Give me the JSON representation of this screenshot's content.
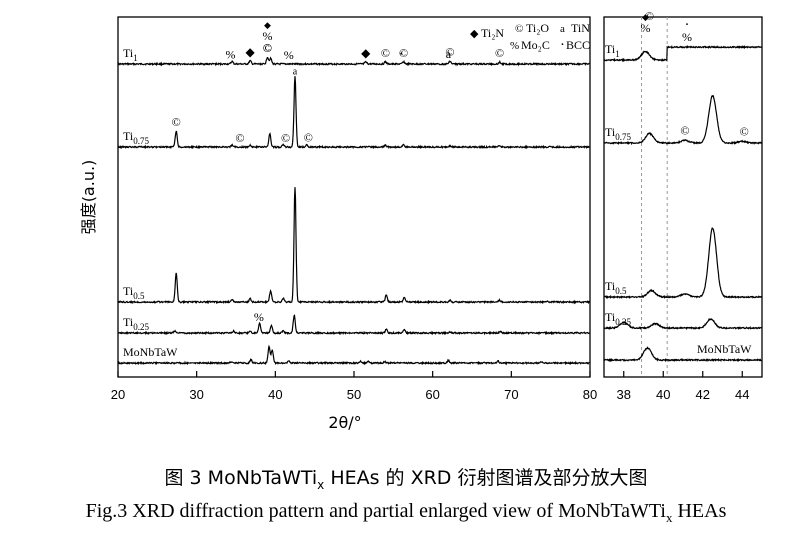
{
  "chart_data": [
    {
      "type": "line",
      "panel": "full pattern",
      "xlabel": "2θ/°",
      "ylabel": "强度(a.u.)",
      "xlim": [
        20,
        80
      ],
      "x_ticks": [
        20,
        30,
        40,
        50,
        60,
        70,
        80
      ],
      "grid": false,
      "legend": {
        "placement": "top-right",
        "entries": [
          {
            "symbol": "◆",
            "label": "Ti₂N"
          },
          {
            "symbol": "©",
            "label": "Ti₂O"
          },
          {
            "symbol": "a",
            "label": "TiN"
          },
          {
            "symbol": "%",
            "label": "Mo₂C"
          },
          {
            "symbol": "·",
            "label": "BCC"
          }
        ]
      },
      "series": [
        {
          "name": "Ti1",
          "baseline": 8,
          "peaks": [
            [
              34.5,
              0.8
            ],
            [
              36.8,
              1.0
            ],
            [
              39.0,
              2.2
            ],
            [
              39.4,
              1.8
            ],
            [
              51.5,
              0.6
            ],
            [
              54.0,
              0.7
            ],
            [
              56.3,
              0.7
            ],
            [
              62.2,
              0.9
            ],
            [
              68.5,
              0.6
            ]
          ]
        },
        {
          "name": "Ti0.75",
          "baseline": 8,
          "peaks": [
            [
              27.4,
              5.0
            ],
            [
              34.5,
              0.6
            ],
            [
              36.8,
              0.5
            ],
            [
              39.3,
              4.2
            ],
            [
              41.0,
              0.8
            ],
            [
              42.5,
              22.0
            ],
            [
              44.0,
              0.7
            ],
            [
              54.0,
              0.6
            ],
            [
              56.3,
              0.6
            ],
            [
              62.2,
              0.4
            ],
            [
              68.5,
              0.6
            ]
          ]
        },
        {
          "name": "Ti0.5",
          "baseline": 8,
          "peaks": [
            [
              27.4,
              9.0
            ],
            [
              34.5,
              0.8
            ],
            [
              36.8,
              1.0
            ],
            [
              39.4,
              3.5
            ],
            [
              41.0,
              1.1
            ],
            [
              42.5,
              36.0
            ],
            [
              54.1,
              2.3
            ],
            [
              56.4,
              1.4
            ],
            [
              62.2,
              0.5
            ],
            [
              68.5,
              0.6
            ],
            [
              74.5,
              0.3
            ]
          ]
        },
        {
          "name": "Ti0.25",
          "baseline": 8,
          "peaks": [
            [
              27.2,
              0.6
            ],
            [
              34.7,
              0.6
            ],
            [
              36.8,
              0.7
            ],
            [
              38.0,
              3.0
            ],
            [
              39.5,
              2.3
            ],
            [
              41.0,
              0.6
            ],
            [
              42.4,
              5.6
            ],
            [
              54.1,
              1.3
            ],
            [
              56.4,
              1.0
            ],
            [
              62.2,
              0.4
            ],
            [
              68.6,
              0.6
            ]
          ]
        },
        {
          "name": "MoNbTaW",
          "baseline": 8,
          "peaks": [
            [
              34.4,
              0.4
            ],
            [
              36.9,
              1.0
            ],
            [
              39.2,
              5.2
            ],
            [
              39.6,
              4.0
            ],
            [
              41.7,
              0.6
            ],
            [
              50.8,
              0.5
            ],
            [
              51.8,
              0.4
            ],
            [
              53.9,
              0.5
            ],
            [
              62.0,
              0.8
            ],
            [
              68.3,
              0.6
            ],
            [
              73.8,
              0.4
            ]
          ]
        }
      ],
      "series_labels": [
        {
          "base": "Ti",
          "sub": "1"
        },
        {
          "base": "Ti",
          "sub": "0.75"
        },
        {
          "base": "Ti",
          "sub": "0.5"
        },
        {
          "base": "Ti",
          "sub": "0.25"
        },
        {
          "base": "MoNbTaW",
          "sub": ""
        }
      ],
      "peak_marks": [
        {
          "series": "Ti1",
          "items": [
            [
              "%",
              34.3
            ],
            [
              "◆",
              36.8
            ],
            [
              "©",
              39.0
            ],
            [
              "%",
              41.7
            ],
            [
              "◆",
              51.5
            ],
            [
              "©",
              54.0
            ],
            [
              "·",
              56.0
            ],
            [
              "©",
              56.3
            ],
            [
              "a",
              62.0
            ],
            [
              "©",
              62.2
            ],
            [
              "©",
              68.5
            ]
          ]
        },
        {
          "series": "Ti0.75",
          "items": [
            [
              "©",
              27.4
            ],
            [
              "©",
              35.5
            ],
            [
              "©",
              41.3
            ],
            [
              "©",
              44.2
            ]
          ]
        },
        {
          "series": "Ti0.25",
          "items": [
            [
              "%",
              37.9
            ]
          ]
        }
      ],
      "stacked_mark": {
        "series": "Ti1",
        "x": 39.0,
        "symbols": [
          "◆",
          "%",
          "©"
        ]
      },
      "top_mark": {
        "series": "Ti0.75",
        "x": 42.5,
        "symbol": "a"
      }
    },
    {
      "type": "line",
      "panel": "partial enlarged view",
      "xlim": [
        37,
        45
      ],
      "x_ticks": [
        38,
        40,
        42,
        44
      ],
      "dashed_reference_x": [
        38.9,
        40.2
      ],
      "series": [
        {
          "name": "Ti1",
          "baseline": 8,
          "peaks": [
            [
              39.1,
              2.0
            ]
          ],
          "step": {
            "from": 40.2,
            "offset": 3.0
          }
        },
        {
          "name": "Ti0.75",
          "baseline": 8,
          "peaks": [
            [
              39.3,
              2.2
            ],
            [
              41.1,
              0.6
            ],
            [
              42.5,
              11.0
            ],
            [
              44.0,
              0.4
            ]
          ]
        },
        {
          "name": "Ti0.5",
          "baseline": 8,
          "peaks": [
            [
              39.4,
              1.5
            ],
            [
              41.1,
              0.7
            ],
            [
              42.5,
              16.0
            ]
          ]
        },
        {
          "name": "Ti0.25",
          "baseline": 8,
          "peaks": [
            [
              38.0,
              1.3
            ],
            [
              39.6,
              1.0
            ],
            [
              42.4,
              2.1
            ]
          ]
        },
        {
          "name": "MoNbTaW",
          "baseline": 8,
          "peaks": [
            [
              39.2,
              2.8
            ]
          ]
        }
      ],
      "series_labels": [
        {
          "base": "Ti",
          "sub": "1"
        },
        {
          "base": "Ti",
          "sub": "0.75"
        },
        {
          "base": "Ti",
          "sub": "0.5"
        },
        {
          "base": "Ti",
          "sub": "0.25"
        },
        {
          "base": "MoNbTaW",
          "sub": ""
        }
      ],
      "peak_marks": [
        {
          "series": "Ti1",
          "items": [
            [
              "◆",
              39.1
            ],
            [
              "%",
              39.1
            ],
            [
              "©",
              39.3
            ],
            [
              "%",
              41.2
            ],
            [
              "·",
              41.2
            ]
          ]
        },
        {
          "series": "Ti0.75",
          "items": [
            [
              "©",
              41.1
            ],
            [
              "©",
              44.1
            ]
          ]
        }
      ]
    }
  ],
  "caption": {
    "cn": "图 3 MoNbTaWTi",
    "cn_sub": "x",
    "cn_tail": " HEAs 的 XRD 衍射图谱及部分放大图",
    "en": "Fig.3 XRD diffraction pattern and partial enlarged view of MoNbTaWTi",
    "en_sub": "x",
    "en_tail": " HEAs"
  }
}
